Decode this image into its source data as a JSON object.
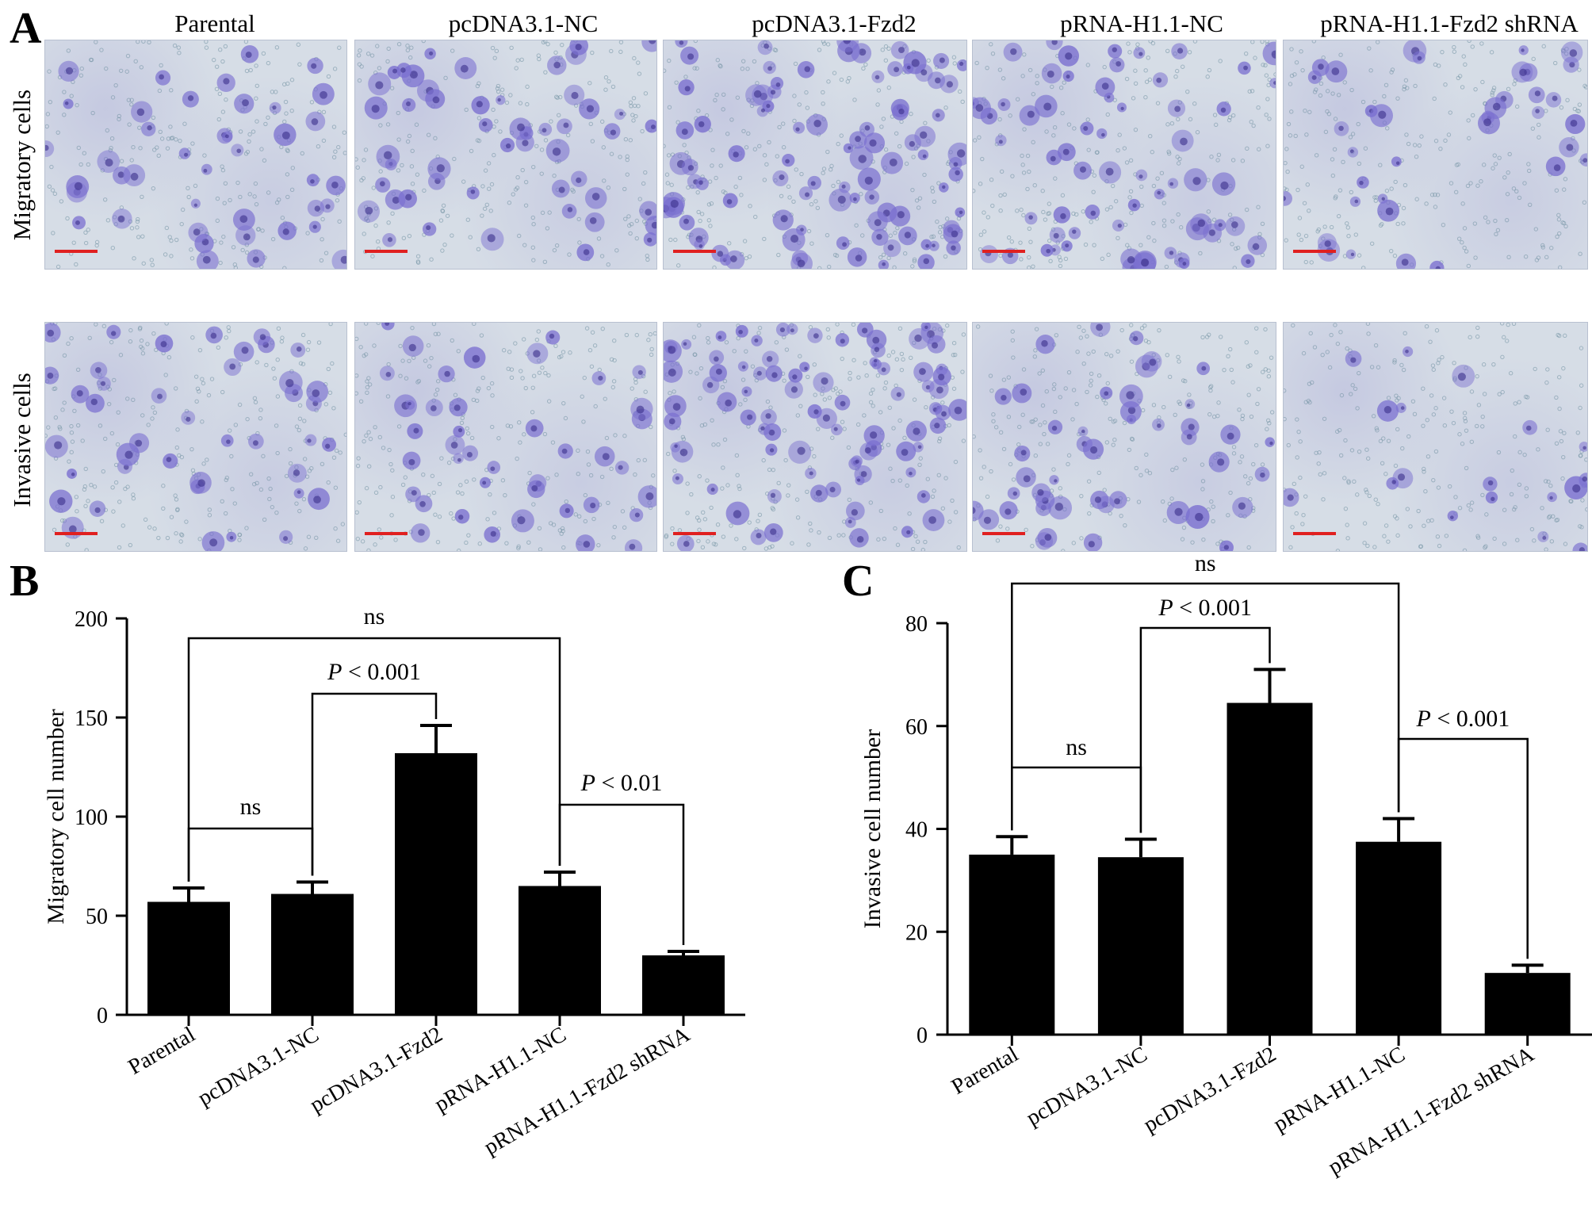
{
  "panel_labels": {
    "a": "A",
    "b": "B",
    "c": "C"
  },
  "panel_a": {
    "columns": [
      "Parental",
      "pcDNA3.1-NC",
      "pcDNA3.1-Fzd2",
      "pRNA-H1.1-NC",
      "pRNA-H1.1-Fzd2 shRNA"
    ],
    "rows": [
      "Migratory cells",
      "Invasive cells"
    ],
    "cell_density": [
      [
        0.45,
        0.55,
        1.0,
        0.7,
        0.4
      ],
      [
        0.45,
        0.45,
        0.95,
        0.5,
        0.2
      ]
    ],
    "colors": {
      "background": "#d6dde6",
      "cell": "#7a6fd0",
      "pore": "#6f8fa0",
      "scale_bar": "#e02020"
    }
  },
  "chart_data": [
    {
      "type": "bar",
      "panel": "B",
      "categories": [
        "Parental",
        "pcDNA3.1-NC",
        "pcDNA3.1-Fzd2",
        "pRNA-H1.1-NC",
        "pRNA-H1.1-Fzd2 shRNA"
      ],
      "values": [
        57,
        61,
        132,
        65,
        30
      ],
      "errors": [
        7,
        6,
        14,
        7,
        2
      ],
      "ylabel": "Migratory cell number",
      "ylim": [
        0,
        200
      ],
      "yticks": [
        0,
        50,
        100,
        150,
        200
      ],
      "bar_color": "#000000",
      "brackets": [
        {
          "from": 0,
          "to": 3,
          "label": "ns",
          "italic_p": false
        },
        {
          "from": 1,
          "to": 2,
          "label": " < 0.001",
          "italic_p": true
        },
        {
          "from": 0,
          "to": 1,
          "label": "ns",
          "italic_p": false
        },
        {
          "from": 3,
          "to": 4,
          "label": " < 0.01",
          "italic_p": true
        }
      ]
    },
    {
      "type": "bar",
      "panel": "C",
      "categories": [
        "Parental",
        "pcDNA3.1-NC",
        "pcDNA3.1-Fzd2",
        "pRNA-H1.1-NC",
        "pRNA-H1.1-Fzd2 shRNA"
      ],
      "values": [
        35,
        34.5,
        64.5,
        37.5,
        12
      ],
      "errors": [
        3.5,
        3.5,
        6.5,
        4.5,
        1.5
      ],
      "ylabel": "Invasive cell number",
      "ylim": [
        0,
        80
      ],
      "yticks": [
        0,
        20,
        40,
        60,
        80
      ],
      "bar_color": "#000000",
      "brackets": [
        {
          "from": 0,
          "to": 3,
          "label": "ns",
          "italic_p": false
        },
        {
          "from": 1,
          "to": 2,
          "label": " < 0.001",
          "italic_p": true
        },
        {
          "from": 0,
          "to": 1,
          "label": "ns",
          "italic_p": false
        },
        {
          "from": 3,
          "to": 4,
          "label": " < 0.001",
          "italic_p": true
        }
      ]
    }
  ]
}
